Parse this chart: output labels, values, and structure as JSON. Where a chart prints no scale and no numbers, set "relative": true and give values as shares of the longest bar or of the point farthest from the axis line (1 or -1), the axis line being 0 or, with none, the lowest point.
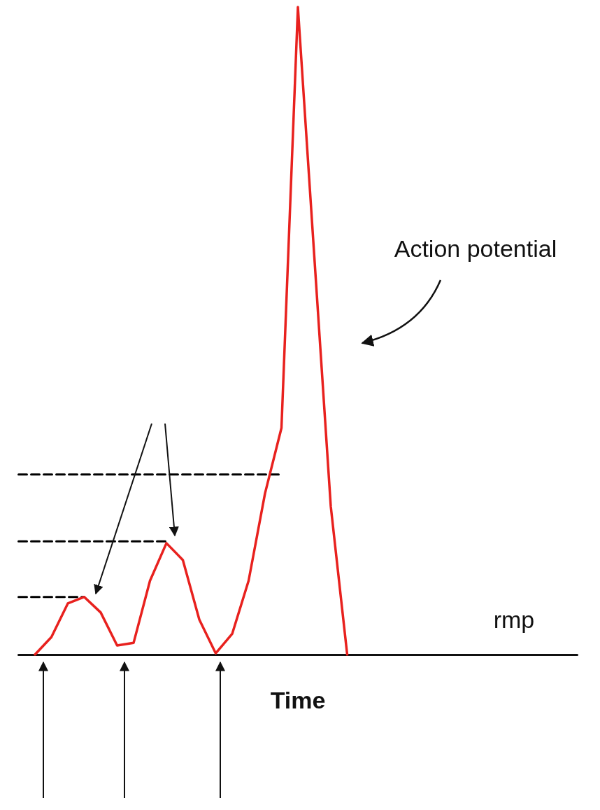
{
  "chart_data": {
    "type": "line",
    "relative": true,
    "xlabel": "Time",
    "annotations": [
      "Action potential",
      "rmp"
    ],
    "grid": false,
    "marker": "none",
    "categories": [
      null,
      null,
      null,
      null,
      null,
      null,
      null,
      null,
      null,
      null,
      null,
      null,
      null,
      null,
      null,
      null,
      null,
      null,
      null,
      null,
      null,
      null,
      null,
      null,
      null,
      null,
      null,
      null,
      null,
      null,
      null,
      null,
      null,
      null,
      null
    ],
    "series": [
      {
        "color": "#e8211e",
        "line_style": "solid",
        "values": [
          null,
          0,
          0.027,
          0.079,
          0.089,
          0.065,
          0.014,
          0.018,
          0.114,
          0.172,
          0.146,
          0.054,
          0.002,
          0.032,
          0.114,
          0.249,
          0.35,
          1,
          0.614,
          0.229,
          0,
          null,
          null,
          null,
          null,
          null,
          null,
          null,
          null,
          null,
          null,
          null,
          null,
          null,
          null
        ]
      },
      {
        "color": "#000000",
        "line_style": "dashed",
        "values": [
          0.089,
          0.089,
          0.089,
          0.089,
          0.089,
          null,
          null,
          null,
          null,
          null,
          null,
          null,
          null,
          null,
          null,
          null,
          null,
          null,
          null,
          null,
          null,
          null,
          null,
          null,
          null,
          null,
          null,
          null,
          null,
          null,
          null,
          null,
          null,
          null,
          null
        ]
      },
      {
        "color": "#000000",
        "line_style": "dashed",
        "values": [
          0.175,
          0.175,
          0.175,
          0.175,
          0.175,
          0.175,
          0.175,
          0.175,
          0.175,
          0.175,
          null,
          null,
          null,
          null,
          null,
          null,
          null,
          null,
          null,
          null,
          null,
          null,
          null,
          null,
          null,
          null,
          null,
          null,
          null,
          null,
          null,
          null,
          null,
          null,
          null
        ]
      },
      {
        "color": "#000000",
        "line_style": "dashed",
        "values": [
          0.278,
          0.278,
          0.278,
          0.278,
          0.278,
          0.278,
          0.278,
          0.278,
          0.278,
          0.278,
          0.278,
          0.278,
          0.278,
          0.278,
          0.278,
          0.278,
          0.278,
          null,
          null,
          null,
          null,
          null,
          null,
          null,
          null,
          null,
          null,
          null,
          null,
          null,
          null,
          null,
          null,
          null,
          null
        ]
      }
    ]
  }
}
